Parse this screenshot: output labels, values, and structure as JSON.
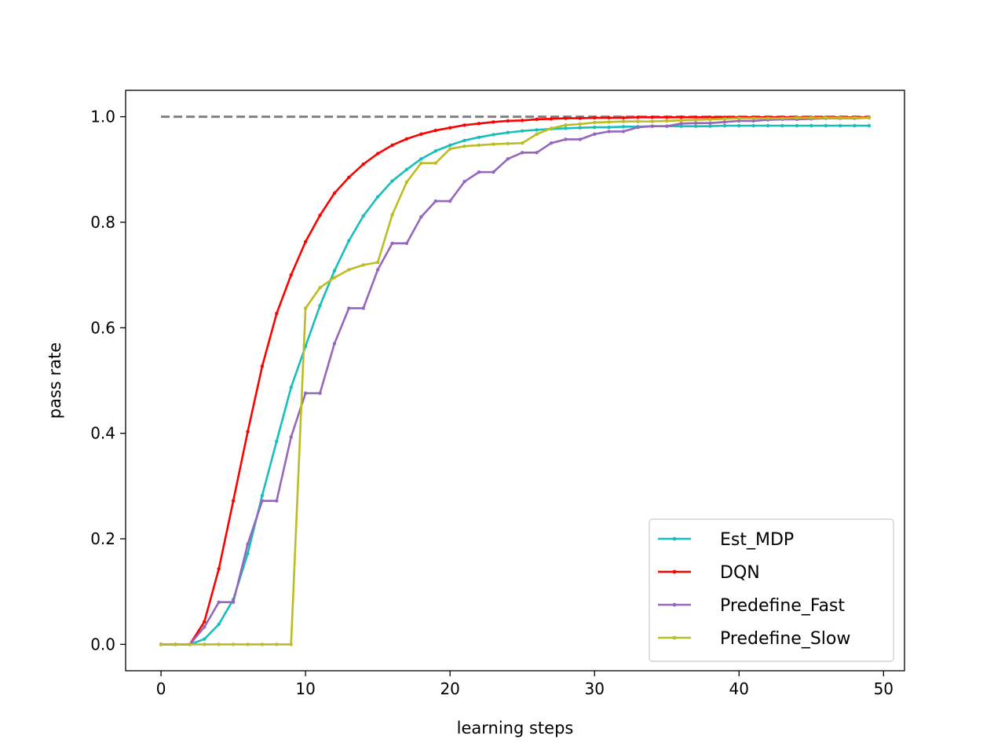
{
  "chart_data": {
    "type": "line",
    "title": "",
    "xlabel": "learning steps",
    "ylabel": "pass rate",
    "xlim": [
      -2.45,
      51.45
    ],
    "ylim": [
      -0.05,
      1.05
    ],
    "xticks": [
      0,
      10,
      20,
      30,
      40,
      50
    ],
    "yticks": [
      0.0,
      0.2,
      0.4,
      0.6,
      0.8,
      1.0
    ],
    "xtick_labels": [
      "0",
      "10",
      "20",
      "30",
      "40",
      "50"
    ],
    "ytick_labels": [
      "0.0",
      "0.2",
      "0.4",
      "0.6",
      "0.8",
      "1.0"
    ],
    "grid": false,
    "legend_position": "lower-right",
    "reference_line": {
      "y": 1.0,
      "x": [
        0,
        49
      ],
      "color": "#808080",
      "style": "dashed"
    },
    "x": [
      0,
      1,
      2,
      3,
      4,
      5,
      6,
      7,
      8,
      9,
      10,
      11,
      12,
      13,
      14,
      15,
      16,
      17,
      18,
      19,
      20,
      21,
      22,
      23,
      24,
      25,
      26,
      27,
      28,
      29,
      30,
      31,
      32,
      33,
      34,
      35,
      36,
      37,
      38,
      39,
      40,
      41,
      42,
      43,
      44,
      45,
      46,
      47,
      48,
      49
    ],
    "series": [
      {
        "name": "Est_MDP",
        "color": "#17bebb",
        "values": [
          0,
          0,
          0,
          0.01,
          0.038,
          0.085,
          0.172,
          0.282,
          0.385,
          0.487,
          0.565,
          0.642,
          0.708,
          0.765,
          0.812,
          0.848,
          0.878,
          0.9,
          0.92,
          0.935,
          0.946,
          0.955,
          0.961,
          0.966,
          0.97,
          0.973,
          0.975,
          0.977,
          0.978,
          0.979,
          0.98,
          0.98,
          0.981,
          0.981,
          0.982,
          0.982,
          0.982,
          0.982,
          0.982,
          0.983,
          0.983,
          0.983,
          0.983,
          0.983,
          0.983,
          0.983,
          0.983,
          0.983,
          0.983,
          0.983
        ]
      },
      {
        "name": "DQN",
        "color": "#ff0000",
        "values": [
          0,
          0,
          0,
          0.043,
          0.143,
          0.272,
          0.403,
          0.527,
          0.627,
          0.7,
          0.763,
          0.813,
          0.855,
          0.885,
          0.91,
          0.93,
          0.946,
          0.958,
          0.967,
          0.974,
          0.979,
          0.984,
          0.987,
          0.99,
          0.992,
          0.993,
          0.995,
          0.996,
          0.997,
          0.997,
          0.998,
          0.998,
          0.998,
          0.999,
          0.999,
          0.999,
          0.999,
          0.999,
          0.999,
          0.999,
          0.999,
          0.999,
          0.999,
          0.999,
          0.999,
          0.999,
          0.999,
          0.999,
          0.999,
          0.999
        ]
      },
      {
        "name": "Predefine_Fast",
        "color": "#9467bd",
        "values": [
          0,
          0,
          0,
          0.033,
          0.08,
          0.08,
          0.19,
          0.272,
          0.272,
          0.393,
          0.476,
          0.476,
          0.57,
          0.637,
          0.637,
          0.71,
          0.76,
          0.76,
          0.81,
          0.84,
          0.84,
          0.877,
          0.895,
          0.895,
          0.92,
          0.932,
          0.932,
          0.95,
          0.957,
          0.957,
          0.967,
          0.972,
          0.972,
          0.98,
          0.982,
          0.982,
          0.987,
          0.988,
          0.988,
          0.99,
          0.992,
          0.992,
          0.994,
          0.995,
          0.995,
          0.996,
          0.997,
          0.997,
          0.997,
          0.998
        ]
      },
      {
        "name": "Predefine_Slow",
        "color": "#bcbd22",
        "values": [
          0,
          0,
          0,
          0,
          0,
          0,
          0,
          0,
          0,
          0,
          0.637,
          0.676,
          0.695,
          0.71,
          0.719,
          0.724,
          0.814,
          0.876,
          0.912,
          0.912,
          0.939,
          0.944,
          0.946,
          0.948,
          0.949,
          0.95,
          0.967,
          0.978,
          0.984,
          0.986,
          0.989,
          0.99,
          0.991,
          0.991,
          0.991,
          0.992,
          0.993,
          0.994,
          0.995,
          0.996,
          0.997,
          0.997,
          0.997,
          0.997,
          0.998,
          0.998,
          0.998,
          0.998,
          0.998,
          0.998
        ]
      }
    ]
  }
}
